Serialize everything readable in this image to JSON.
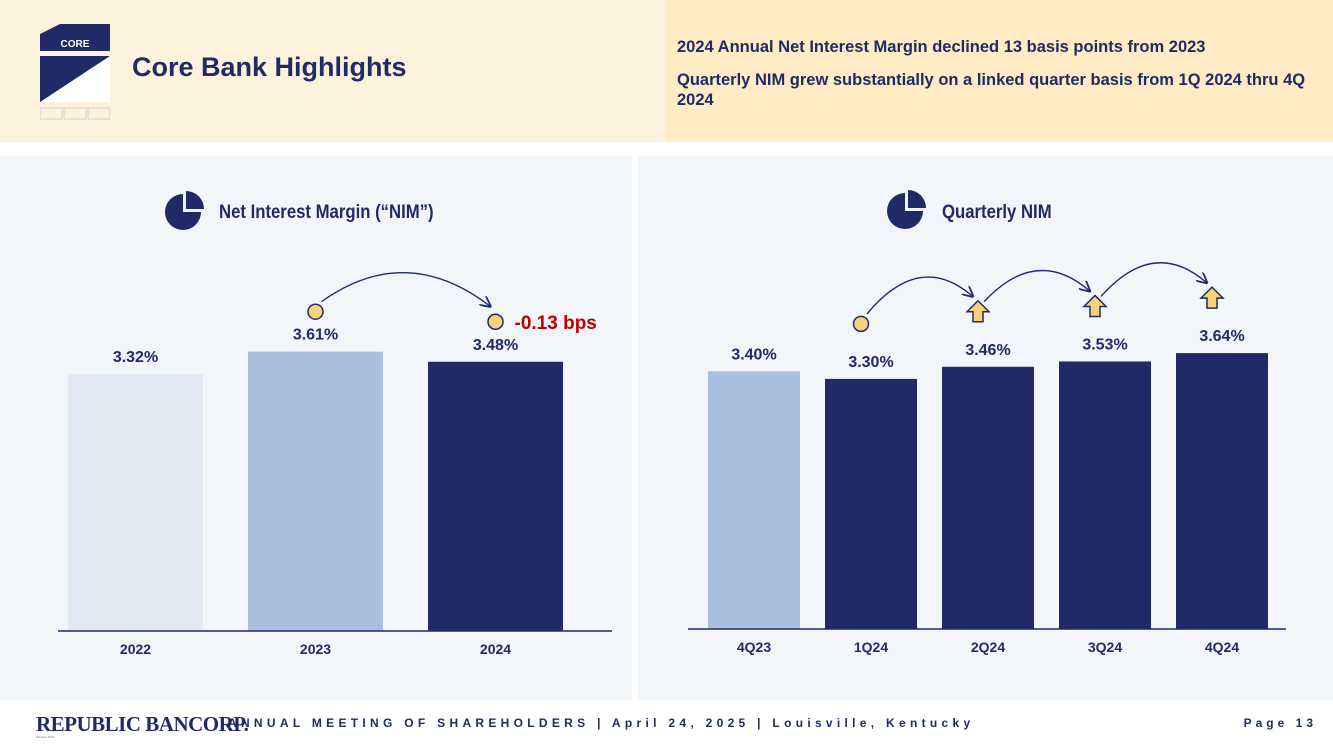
{
  "header": {
    "logo_text": "CORE",
    "title": "Core Bank Highlights",
    "bullets": [
      "2024 Annual Net Interest Margin declined 13 basis points from 2023",
      "Quarterly NIM grew substantially on a linked quarter basis from 1Q 2024 thru 4Q 2024"
    ]
  },
  "colors": {
    "navy": "#1f2a66",
    "light_blue": "#aabfe0",
    "pale_blue": "#e1e8f3",
    "red": "#c00000",
    "yellow": "#f7d27a"
  },
  "chart_data": [
    {
      "type": "bar",
      "title": "Net Interest Margin (“NIM”)",
      "categories": [
        "2022",
        "2023",
        "2024"
      ],
      "values": [
        3.32,
        3.61,
        3.48
      ],
      "labels": [
        "3.32%",
        "3.61%",
        "3.48%"
      ],
      "colors": [
        "#e1e8f3",
        "#aabfe0",
        "#1f2a66"
      ],
      "indicators": [
        "none",
        "circle",
        "circle"
      ],
      "annotation": "-0.13 bps",
      "ylim": [
        0,
        3.8
      ]
    },
    {
      "type": "bar",
      "title": "Quarterly NIM",
      "categories": [
        "4Q23",
        "1Q24",
        "2Q24",
        "3Q24",
        "4Q24"
      ],
      "values": [
        3.4,
        3.3,
        3.46,
        3.53,
        3.64
      ],
      "labels": [
        "3.40%",
        "3.30%",
        "3.46%",
        "3.53%",
        "3.64%"
      ],
      "colors": [
        "#aabfe0",
        "#1f2a66",
        "#1f2a66",
        "#1f2a66",
        "#1f2a66"
      ],
      "indicators": [
        "none",
        "circle",
        "up",
        "up",
        "up"
      ],
      "ylim": [
        0,
        3.8
      ]
    }
  ],
  "footer": {
    "brand": "REPUBLIC BANCORP.",
    "brand_sub": "Member FDIC",
    "tagline": "ANNUAL MEETING OF SHAREHOLDERS  |  April 24, 2025  |  Louisville, Kentucky",
    "page": "Page  13"
  }
}
